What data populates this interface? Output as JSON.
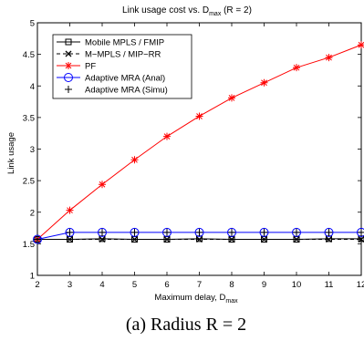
{
  "chart_data": {
    "type": "line",
    "title": "Link usage cost vs. D",
    "title_sub": "max",
    "title_suffix": " (R = 2)",
    "xlabel": "Maximum delay, D",
    "xlabel_sub": "max",
    "ylabel": "Link usage",
    "xlim": [
      2,
      12
    ],
    "ylim": [
      1,
      5
    ],
    "x_ticks": [
      "2",
      "3",
      "4",
      "5",
      "6",
      "7",
      "8",
      "9",
      "10",
      "11",
      "12"
    ],
    "y_ticks": [
      "1",
      "1.5",
      "2",
      "2.5",
      "3",
      "3.5",
      "4",
      "4.5",
      "5"
    ],
    "grid": false,
    "legend_position": "top-left",
    "x": [
      2,
      3,
      4,
      5,
      6,
      7,
      8,
      9,
      10,
      11,
      12
    ],
    "series": [
      {
        "name": "Mobile MPLS / FMIP",
        "values": [
          1.57,
          1.57,
          1.58,
          1.57,
          1.57,
          1.58,
          1.57,
          1.57,
          1.57,
          1.58,
          1.58
        ],
        "color": "#000000",
        "line": "solid",
        "marker": "square"
      },
      {
        "name": "M−MPLS / MIP−RR",
        "values": [
          1.57,
          1.57,
          1.57,
          1.57,
          1.57,
          1.57,
          1.57,
          1.57,
          1.57,
          1.57,
          1.57
        ],
        "color": "#000000",
        "line": "dashed",
        "marker": "x"
      },
      {
        "name": "PF",
        "values": [
          1.57,
          2.03,
          2.44,
          2.83,
          3.2,
          3.52,
          3.81,
          4.05,
          4.29,
          4.45,
          4.65
        ],
        "color": "#ff0000",
        "line": "solid",
        "marker": "asterisk"
      },
      {
        "name": "Adaptive MRA (Anal)",
        "values": [
          1.57,
          1.68,
          1.68,
          1.68,
          1.68,
          1.68,
          1.68,
          1.68,
          1.68,
          1.68,
          1.68
        ],
        "color": "#0000ff",
        "line": "solid",
        "marker": "circle"
      },
      {
        "name": "Adaptive MRA (Simu)",
        "values": [
          1.57,
          1.68,
          1.68,
          1.68,
          1.68,
          1.68,
          1.68,
          1.68,
          1.68,
          1.68,
          1.68
        ],
        "color": "#000000",
        "line": "none",
        "marker": "plus"
      }
    ]
  },
  "caption": "(a) Radius R = 2"
}
